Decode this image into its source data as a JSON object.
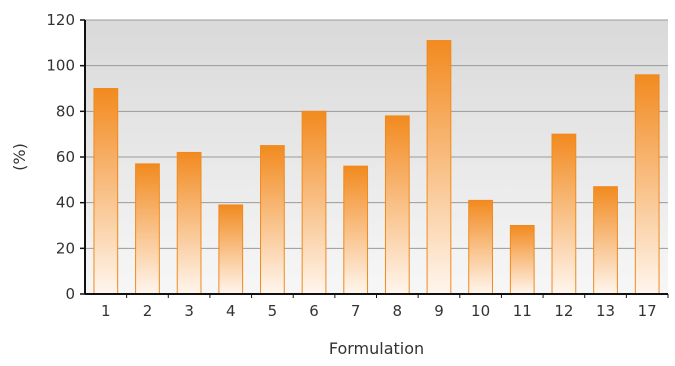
{
  "chart_data": {
    "type": "bar",
    "title": "",
    "xlabel": "Formulation",
    "ylabel": "(%)",
    "categories": [
      "1",
      "2",
      "3",
      "4",
      "5",
      "6",
      "7",
      "8",
      "9",
      "10",
      "11",
      "12",
      "13",
      "17"
    ],
    "series": [
      {
        "values": [
          90,
          57,
          62,
          39,
          65,
          80,
          56,
          78,
          111,
          41,
          30,
          70,
          47,
          96
        ]
      }
    ],
    "ylim": [
      0,
      120
    ],
    "yticks": [
      0,
      20,
      40,
      60,
      80,
      100,
      120
    ],
    "ytick_labels": [
      "0",
      "20",
      "40",
      "60",
      "80",
      "100",
      "120"
    ],
    "grid": "horizontal",
    "legend": "none",
    "colors": {
      "bar_fill_top": "#f28a1f",
      "bar_fill_bottom": "#fff6ee",
      "bar_edge": "#f08a1c",
      "plot_bg_top": "#d9d9d9",
      "plot_bg_bottom": "#f7f7f7",
      "grid": "#9a9a9a",
      "axis": "#111111"
    }
  }
}
